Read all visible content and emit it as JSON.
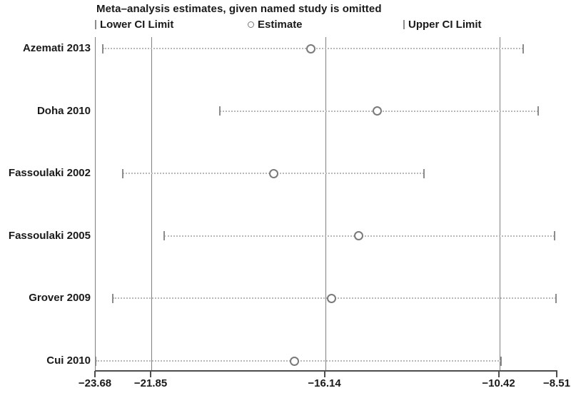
{
  "chart": {
    "title": "Meta–analysis estimates, given named study is omitted"
  },
  "legend": {
    "items": [
      {
        "label": "Lower CI Limit",
        "marker": "vertical-bar-icon"
      },
      {
        "label": "Estimate",
        "marker": "circle-icon"
      },
      {
        "label": "Upper CI Limit",
        "marker": "vertical-bar-icon"
      }
    ]
  },
  "chart_data": {
    "type": "scatter",
    "subtype": "leave-one-out-sensitivity-forest-plot",
    "title": "Meta–analysis estimates, given named study is omitted",
    "xlabel": "",
    "ylabel": "",
    "xlim": [
      -23.68,
      -8.51
    ],
    "grid": true,
    "legend_position": "top",
    "reference_lines": [
      -23.68,
      -21.85,
      -16.14,
      -10.42
    ],
    "xticks": [
      {
        "value": -23.68,
        "label": "−23.68"
      },
      {
        "value": -21.85,
        "label": "−21.85"
      },
      {
        "value": -16.14,
        "label": "−16.14"
      },
      {
        "value": -10.42,
        "label": "−10.42"
      },
      {
        "value": -8.51,
        "label": "−8.51"
      }
    ],
    "studies": [
      {
        "label": "Azemati 2013",
        "lower": -23.45,
        "estimate": -16.6,
        "upper": -9.63
      },
      {
        "label": "Doha 2010",
        "lower": -19.6,
        "estimate": -14.42,
        "upper": -9.14
      },
      {
        "label": "Fassoulaki 2002",
        "lower": -22.79,
        "estimate": -17.84,
        "upper": -12.89
      },
      {
        "label": "Fassoulaki 2005",
        "lower": -21.43,
        "estimate": -15.05,
        "upper": -8.6
      },
      {
        "label": "Grover 2009",
        "lower": -23.12,
        "estimate": -15.94,
        "upper": -8.55
      },
      {
        "label": "Cui 2010",
        "lower": -23.68,
        "estimate": -17.14,
        "upper": -10.36
      }
    ]
  },
  "colors": {
    "text": "#1a1a1a",
    "reference_line": "#808080",
    "ci_dotted_line": "#b8b8b8",
    "ci_end_tick": "#8c8c8c",
    "estimate_ring": "#7a7a7a",
    "axis": "#4d4d4d",
    "background": "#ffffff"
  }
}
